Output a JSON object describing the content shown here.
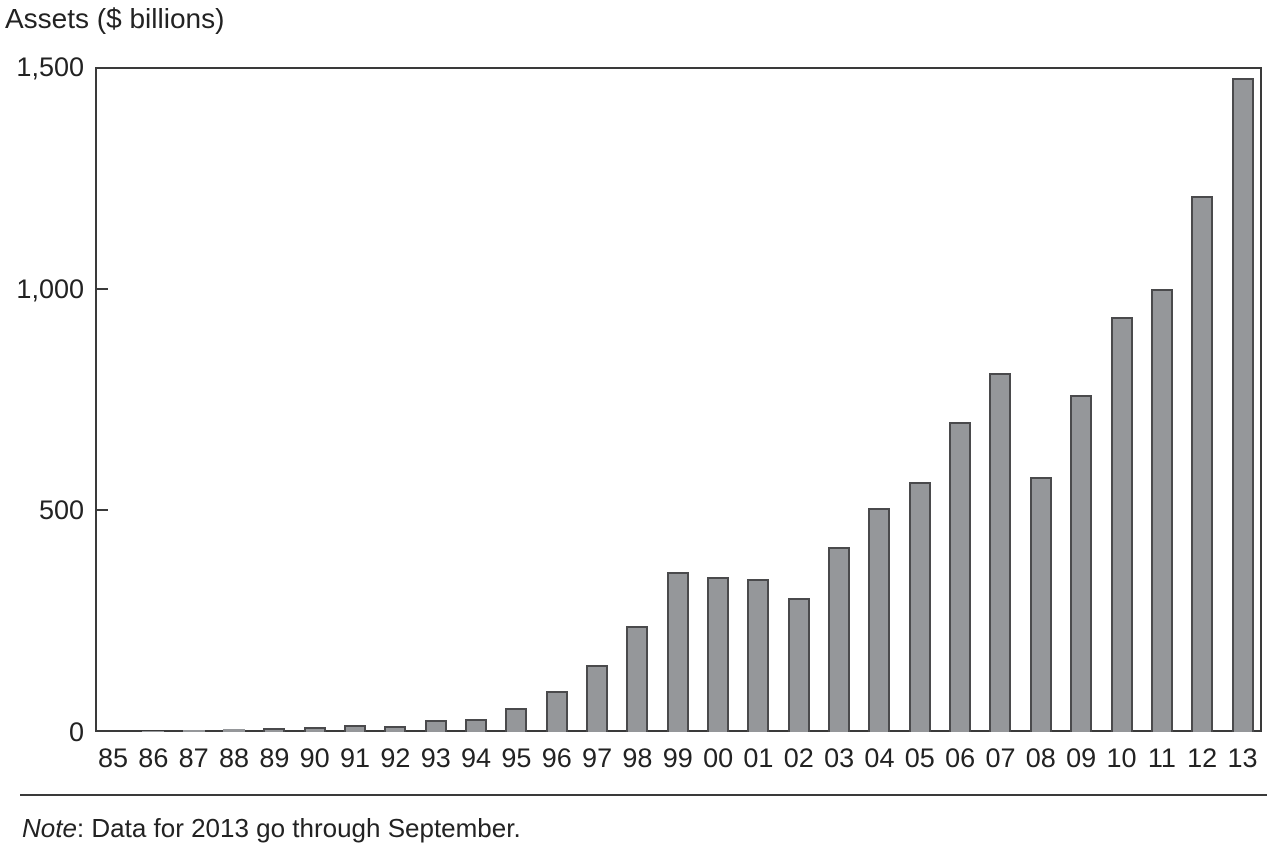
{
  "title": "Assets ($ billions)",
  "note": {
    "label": "Note",
    "text": ": Data for 2013 go through September."
  },
  "colors": {
    "bar_fill": "#95979a",
    "bar_border": "#4a4a4c",
    "axis": "#3a3a3a",
    "text": "#222222"
  },
  "chart_data": {
    "type": "bar",
    "title": "Assets ($ billions)",
    "xlabel": "",
    "ylabel": "Assets ($ billions)",
    "ylim": [
      0,
      1500
    ],
    "grid": false,
    "legend": "none",
    "categories": [
      "85",
      "86",
      "87",
      "88",
      "89",
      "90",
      "91",
      "92",
      "93",
      "94",
      "95",
      "96",
      "97",
      "98",
      "99",
      "00",
      "01",
      "02",
      "03",
      "04",
      "05",
      "06",
      "07",
      "08",
      "09",
      "10",
      "11",
      "12",
      "13"
    ],
    "values": [
      1,
      2,
      5,
      6,
      8,
      11,
      15,
      14,
      27,
      30,
      55,
      92,
      150,
      240,
      360,
      350,
      345,
      303,
      418,
      505,
      565,
      700,
      810,
      575,
      760,
      935,
      1000,
      1210,
      1475
    ],
    "yticks": [
      {
        "label": "0",
        "value": 0
      },
      {
        "label": "500",
        "value": 500
      },
      {
        "label": "1,000",
        "value": 1000
      },
      {
        "label": "1,500",
        "value": 1500
      }
    ],
    "note": "Note: Data for 2013 go through September."
  }
}
